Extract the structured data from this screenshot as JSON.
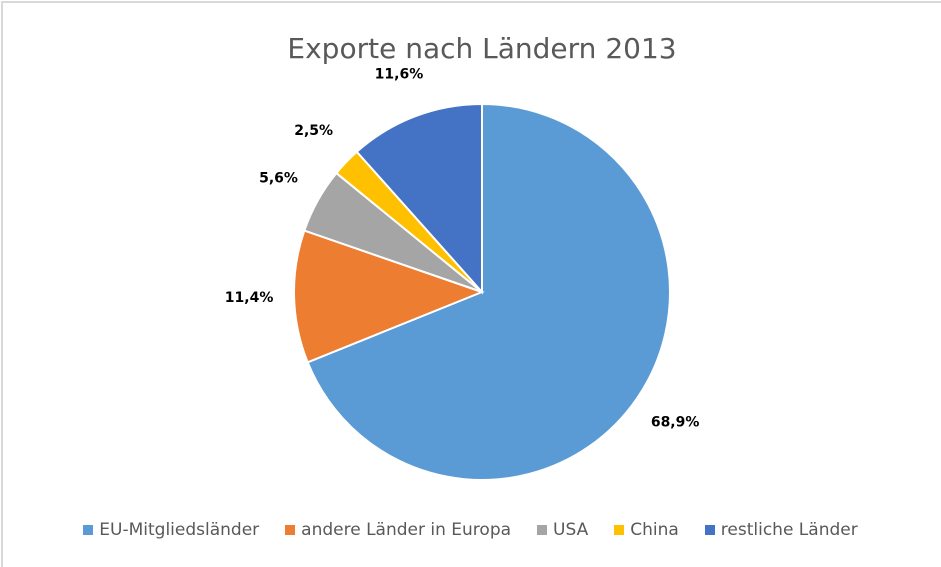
{
  "chart_data": {
    "type": "pie",
    "title": "Exporte nach Ländern 2013",
    "categories": [
      "EU-Mitgliedsländer",
      "andere Länder in Europa",
      "USA",
      "China",
      "restliche Länder"
    ],
    "values": [
      68.9,
      11.4,
      5.6,
      2.5,
      11.6
    ],
    "value_labels": [
      "68,9%",
      "11,4%",
      "5,6%",
      "2,5%",
      "11,6%"
    ],
    "colors": [
      "#5b9bd5",
      "#ed7d31",
      "#a5a5a5",
      "#ffc000",
      "#4472c4"
    ],
    "legend": "bottom"
  }
}
